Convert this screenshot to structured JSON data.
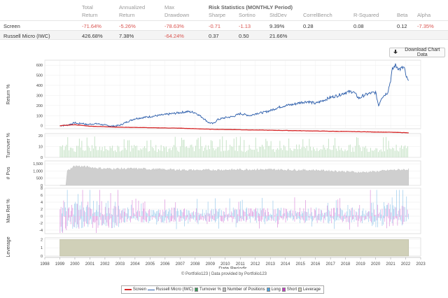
{
  "stats": {
    "headers": {
      "total_1": "Total",
      "total_2": "Return",
      "ann_1": "Annualized",
      "ann_2": "Return",
      "max_1": "Max",
      "max_2": "Drawdown",
      "risk": "Risk Statistics (MONTHLY Period)",
      "sharpe": "Sharpe",
      "sortino": "Sortino",
      "stddev": "StdDev",
      "correl": "CorrelBench",
      "rsq": "R-Squared",
      "beta": "Beta",
      "alpha": "Alpha"
    },
    "rows": [
      {
        "name": "Screen",
        "total": "-71.64%",
        "annualized": "-5.26%",
        "drawdown": "-78.63%",
        "sharpe": "-0.71",
        "sortino": "-1.13",
        "stddev": "9.39%",
        "correl": "0.28",
        "rsq": "0.08",
        "beta": "0.12",
        "alpha": "-7.35%"
      },
      {
        "name": "Russell Micro (IWC)",
        "total": "426.68%",
        "annualized": "7.38%",
        "drawdown": "-64.24%",
        "sharpe": "0.37",
        "sortino": "0.50",
        "stddev": "21.66%",
        "correl": "",
        "rsq": "",
        "beta": "",
        "alpha": ""
      }
    ]
  },
  "download_label": "Download Chart Data",
  "credit": "© Portfolio123 | Data provided by Portfolio123",
  "legend": {
    "screen": "Screen",
    "russell": "Russell Micro (IWC)",
    "turnover": "Turnover %",
    "positions": "Number of Positions",
    "long": "Long",
    "short": "Short",
    "leverage": "Leverage"
  },
  "colors": {
    "screen": "#d62728",
    "russell": "#2a5caa",
    "turnover": "#b9dcb9",
    "positions": "#cfcfcf",
    "long": "#4aa3df",
    "short": "#c13bc1",
    "leverage": "#d0d0b8",
    "negative": "#d9534f"
  },
  "chart_data": [
    {
      "type": "line",
      "ylabel": "Return %",
      "ylim": [
        -30,
        650
      ],
      "yticks": [
        0,
        100,
        200,
        300,
        400,
        500,
        600
      ],
      "xlim": [
        1998,
        2023
      ],
      "series": [
        {
          "name": "Russell Micro (IWC)",
          "x": [
            1999.0,
            1999.5,
            2000.0,
            2000.2,
            2000.5,
            2000.8,
            2001.0,
            2001.5,
            2002.0,
            2002.5,
            2002.8,
            2003.0,
            2003.5,
            2004.0,
            2004.5,
            2005.0,
            2005.5,
            2006.0,
            2006.5,
            2007.0,
            2007.5,
            2008.0,
            2008.5,
            2008.9,
            2009.2,
            2009.5,
            2010.0,
            2010.5,
            2011.0,
            2011.3,
            2011.7,
            2012.0,
            2012.5,
            2013.0,
            2013.5,
            2014.0,
            2014.5,
            2015.0,
            2015.5,
            2016.0,
            2016.5,
            2017.0,
            2017.5,
            2018.0,
            2018.5,
            2018.9,
            2019.2,
            2019.6,
            2020.0,
            2020.2,
            2020.4,
            2020.8,
            2021.0,
            2021.1,
            2021.3,
            2021.6,
            2021.9,
            2022.0,
            2022.2
          ],
          "y": [
            0,
            5,
            30,
            20,
            25,
            10,
            15,
            20,
            5,
            -5,
            0,
            5,
            40,
            70,
            80,
            90,
            100,
            110,
            120,
            130,
            140,
            130,
            80,
            30,
            20,
            60,
            80,
            90,
            120,
            110,
            100,
            120,
            130,
            150,
            180,
            200,
            210,
            230,
            240,
            220,
            250,
            280,
            300,
            330,
            340,
            270,
            300,
            320,
            330,
            200,
            280,
            330,
            450,
            550,
            600,
            560,
            580,
            500,
            430
          ]
        },
        {
          "name": "Screen",
          "x": [
            1999.0,
            2000.0,
            2001.0,
            2003.0,
            2005.0,
            2007.0,
            2009.0,
            2011.0,
            2013.0,
            2015.0,
            2017.0,
            2019.0,
            2021.0,
            2022.2
          ],
          "y": [
            0,
            10,
            -5,
            -15,
            -20,
            -25,
            -35,
            -40,
            -45,
            -50,
            -55,
            -60,
            -65,
            -70
          ]
        }
      ]
    },
    {
      "type": "bar",
      "ylabel": "Turnover %",
      "ylim": [
        0,
        22
      ],
      "yticks": [
        0,
        10,
        20
      ],
      "series": [
        {
          "name": "Turnover %",
          "typical_range": [
            5,
            12
          ],
          "peak": 20
        }
      ]
    },
    {
      "type": "area",
      "ylabel": "# Pos",
      "ylim": [
        0,
        1700
      ],
      "yticks": [
        0,
        500,
        1000,
        1500
      ],
      "series": [
        {
          "name": "Number of Positions",
          "x": [
            1999.0,
            1999.4,
            1999.5,
            2000.0,
            2001.0,
            2002.0,
            2004.0,
            2008.0,
            2012.0,
            2016.0,
            2019.0,
            2020.0,
            2021.0,
            2022.2
          ],
          "y": [
            0,
            0,
            1000,
            1350,
            1250,
            1150,
            1150,
            1050,
            1100,
            1050,
            900,
            950,
            1050,
            1100
          ]
        }
      ]
    },
    {
      "type": "bar",
      "ylabel": "Max Ret %",
      "ylim": [
        -5,
        8
      ],
      "yticks": [
        -4,
        -2,
        0,
        2,
        4,
        6,
        8
      ],
      "series": [
        {
          "name": "Long"
        },
        {
          "name": "Short"
        }
      ]
    },
    {
      "type": "area",
      "ylabel": "Leverage",
      "ylim": [
        0,
        2.2
      ],
      "yticks": [
        0,
        1,
        2
      ],
      "series": [
        {
          "name": "Leverage",
          "x": [
            1999.0,
            2022.2
          ],
          "y": [
            2,
            2
          ]
        }
      ]
    }
  ],
  "xaxis": {
    "label": "Date Periods",
    "ticks": [
      1998,
      1999,
      2000,
      2001,
      2002,
      2003,
      2004,
      2005,
      2006,
      2007,
      2008,
      2009,
      2010,
      2011,
      2012,
      2013,
      2014,
      2015,
      2016,
      2017,
      2018,
      2019,
      2020,
      2021,
      2022,
      2023
    ]
  }
}
